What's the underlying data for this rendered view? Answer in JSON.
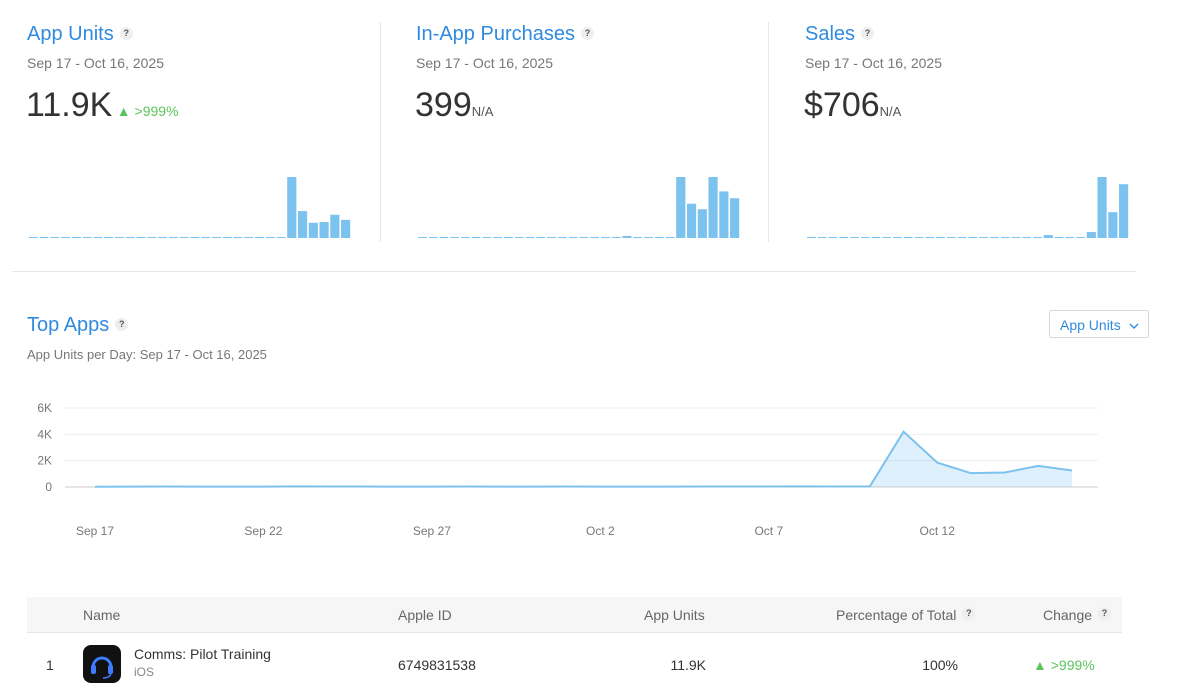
{
  "metrics": [
    {
      "title": "App Units",
      "help": "?",
      "range": "Sep 17 - Oct 16, 2025",
      "value": "11.9K",
      "change": ">999%",
      "color": "#7cc2ef",
      "values": [
        20,
        25,
        40,
        30,
        25,
        30,
        45,
        40,
        35,
        30,
        30,
        35,
        30,
        30,
        35,
        30,
        30,
        30,
        35,
        40,
        40,
        45,
        40,
        50,
        4200,
        1850,
        1050,
        1100,
        1600,
        1250
      ]
    },
    {
      "title": "In-App Purchases",
      "help": "?",
      "range": "Sep 17 - Oct 16, 2025",
      "value": "399",
      "change": "N/A",
      "color": "#7cc2ef",
      "values": [
        0,
        0,
        0,
        0,
        0,
        0,
        0,
        0,
        0,
        0,
        0,
        0,
        0,
        0,
        0,
        0,
        0,
        0,
        0,
        3,
        0,
        0,
        0,
        0,
        89,
        50,
        42,
        89,
        68,
        58
      ]
    },
    {
      "title": "Sales",
      "help": "?",
      "range": "Sep 17 - Oct 16, 2025",
      "value": "$706",
      "change": "N/A",
      "color": "#7cc2ef",
      "values": [
        0,
        0,
        0,
        0,
        0,
        0,
        0,
        0,
        0,
        0,
        0,
        0,
        0,
        0,
        0,
        0,
        0,
        0,
        0,
        0,
        0,
        0,
        14,
        0,
        0,
        0,
        28,
        288,
        122,
        254
      ]
    }
  ],
  "top_apps": {
    "title": "Top Apps",
    "help": "?",
    "subtitle": "App Units per Day: Sep 17 - Oct 16, 2025",
    "dropdown": "App Units",
    "chart": {
      "type": "line",
      "color": "#7cc2ef",
      "grid": true,
      "categories": [
        "Sep 17",
        null,
        null,
        null,
        null,
        "Sep 22",
        null,
        null,
        null,
        null,
        "Sep 27",
        null,
        null,
        null,
        null,
        "Oct 2",
        null,
        null,
        null,
        null,
        "Oct 7",
        null,
        null,
        null,
        null,
        "Oct 12",
        null,
        null,
        null,
        null
      ],
      "values": [
        20,
        25,
        40,
        30,
        25,
        30,
        45,
        40,
        35,
        30,
        30,
        35,
        30,
        30,
        35,
        30,
        30,
        30,
        35,
        40,
        40,
        45,
        40,
        50,
        4200,
        1850,
        1050,
        1100,
        1600,
        1250
      ],
      "ylim": [
        0,
        6000
      ],
      "yticks": [
        0,
        {
          "value": 2000,
          "label": "2K"
        },
        {
          "value": 4000,
          "label": "4K"
        },
        {
          "value": 6000,
          "label": "6K"
        }
      ]
    }
  },
  "table": {
    "headers": [
      "Name",
      "Apple ID",
      "App Units",
      "Percentage of Total",
      "Change"
    ],
    "header_help": [
      "?",
      "?"
    ],
    "rows": [
      [
        "1",
        "Comms: Pilot Training",
        "iOS",
        "6749831538",
        "11.9K",
        "100%",
        ">999%"
      ]
    ]
  }
}
